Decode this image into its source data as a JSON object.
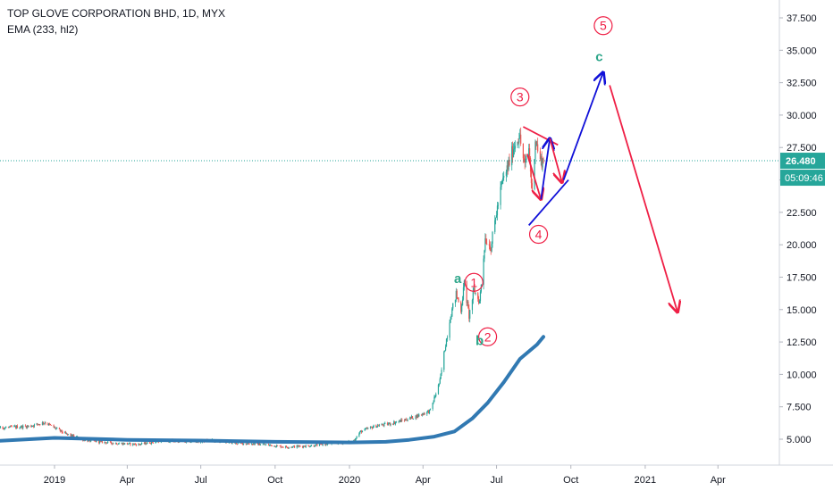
{
  "legend": {
    "symbol": "TOP GLOVE CORPORATION BHD, 1D, MYX",
    "indicator": "EMA (233, hl2)"
  },
  "colors": {
    "up": "#26a69a",
    "down": "#ef5350",
    "ema": "#3179b2",
    "price_line": "#26a69a",
    "wave_red": "#ef1f45",
    "wave_blue": "#1010d8",
    "wave_green": "#2ea68a",
    "axis_text": "#131722",
    "countdown_bg": "#26a69a"
  },
  "chart_data": {
    "type": "candlestick",
    "title": "TOP GLOVE CORPORATION BHD, 1D, MYX",
    "x_ticks": [
      "2019",
      "Apr",
      "Jul",
      "Oct",
      "2020",
      "Apr",
      "Jul",
      "Oct",
      "2021",
      "Apr"
    ],
    "y_ticks": [
      "5.000",
      "7.500",
      "10.000",
      "12.500",
      "15.000",
      "17.500",
      "20.000",
      "22.500",
      "25.000",
      "27.500",
      "30.000",
      "32.500",
      "35.000",
      "37.500"
    ],
    "ylim": [
      3.2,
      38.4
    ],
    "last_price": "26.480",
    "countdown": "05:09:46",
    "grid": false,
    "price_path": [
      [
        "2018-10-01",
        5.8
      ],
      [
        "2018-11-01",
        5.9
      ],
      [
        "2018-12-01",
        6.0
      ],
      [
        "2018-12-20",
        6.3
      ],
      [
        "2019-01-15",
        5.4
      ],
      [
        "2019-02-10",
        4.9
      ],
      [
        "2019-03-15",
        4.7
      ],
      [
        "2019-04-15",
        4.6
      ],
      [
        "2019-05-15",
        4.9
      ],
      [
        "2019-06-15",
        4.8
      ],
      [
        "2019-07-15",
        4.9
      ],
      [
        "2019-08-15",
        4.7
      ],
      [
        "2019-09-15",
        4.6
      ],
      [
        "2019-10-15",
        4.4
      ],
      [
        "2019-11-15",
        4.5
      ],
      [
        "2019-12-15",
        4.7
      ],
      [
        "2020-01-05",
        4.8
      ],
      [
        "2020-01-15",
        5.6
      ],
      [
        "2020-02-01",
        6.0
      ],
      [
        "2020-02-20",
        6.2
      ],
      [
        "2020-03-10",
        6.5
      ],
      [
        "2020-03-25",
        6.8
      ],
      [
        "2020-04-10",
        7.2
      ],
      [
        "2020-04-22",
        9.5
      ],
      [
        "2020-04-28",
        12.0
      ],
      [
        "2020-05-05",
        14.5
      ],
      [
        "2020-05-12",
        16.2
      ],
      [
        "2020-05-18",
        15.0
      ],
      [
        "2020-05-22",
        17.0
      ],
      [
        "2020-05-28",
        14.5
      ],
      [
        "2020-06-03",
        16.5
      ],
      [
        "2020-06-10",
        15.6
      ],
      [
        "2020-06-17",
        20.5
      ],
      [
        "2020-06-24",
        19.8
      ],
      [
        "2020-07-01",
        22.5
      ],
      [
        "2020-07-08",
        24.8
      ],
      [
        "2020-07-15",
        26.0
      ],
      [
        "2020-07-22",
        27.5
      ],
      [
        "2020-07-29",
        28.5
      ],
      [
        "2020-08-05",
        26.0
      ],
      [
        "2020-08-10",
        27.5
      ],
      [
        "2020-08-14",
        24.0
      ],
      [
        "2020-08-18",
        28.2
      ],
      [
        "2020-08-24",
        26.5
      ],
      [
        "2020-08-28",
        26.48
      ]
    ],
    "series": [
      {
        "name": "EMA (233, hl2)",
        "points": [
          [
            "2018-10-01",
            4.8
          ],
          [
            "2019-01-01",
            5.1
          ],
          [
            "2019-04-01",
            4.95
          ],
          [
            "2019-07-01",
            4.9
          ],
          [
            "2019-10-01",
            4.8
          ],
          [
            "2020-01-01",
            4.75
          ],
          [
            "2020-02-15",
            4.8
          ],
          [
            "2020-03-15",
            4.95
          ],
          [
            "2020-04-15",
            5.2
          ],
          [
            "2020-05-10",
            5.6
          ],
          [
            "2020-06-01",
            6.6
          ],
          [
            "2020-06-20",
            7.8
          ],
          [
            "2020-07-10",
            9.4
          ],
          [
            "2020-07-30",
            11.2
          ],
          [
            "2020-08-20",
            12.3
          ],
          [
            "2020-08-28",
            12.9
          ]
        ]
      }
    ],
    "annotations": {
      "lines": [
        {
          "color": "red",
          "points": [
            [
              "2020-08-03",
              29.1
            ],
            [
              "2020-09-15",
              27.7
            ]
          ]
        },
        {
          "color": "blue",
          "points": [
            [
              "2020-08-10",
              21.5
            ],
            [
              "2020-09-28",
              25.0
            ]
          ]
        },
        {
          "color": "red",
          "points": [
            [
              "2020-08-08",
              27.0
            ],
            [
              "2020-08-25",
              23.5
            ]
          ],
          "arrow": true
        },
        {
          "color": "blue",
          "points": [
            [
              "2020-08-25",
              23.5
            ],
            [
              "2020-09-05",
              28.2
            ]
          ],
          "arrow": true
        },
        {
          "color": "red",
          "points": [
            [
              "2020-09-05",
              28.2
            ],
            [
              "2020-09-20",
              24.8
            ]
          ],
          "arrow": true
        },
        {
          "color": "blue",
          "points": [
            [
              "2020-09-22",
              25.0
            ],
            [
              "2020-11-10",
              33.3
            ]
          ],
          "arrow": true
        },
        {
          "color": "red",
          "points": [
            [
              "2020-11-18",
              32.3
            ],
            [
              "2021-02-10",
              14.8
            ]
          ],
          "arrow": true
        }
      ],
      "labels": [
        {
          "text": "1",
          "circle": true,
          "color": "red",
          "at": [
            "2020-06-03",
            17.1
          ]
        },
        {
          "text": "2",
          "circle": true,
          "color": "red",
          "at": [
            "2020-06-20",
            12.9
          ]
        },
        {
          "text": "3",
          "circle": true,
          "color": "red",
          "at": [
            "2020-07-30",
            31.4
          ]
        },
        {
          "text": "4",
          "circle": true,
          "color": "red",
          "at": [
            "2020-08-22",
            20.8
          ]
        },
        {
          "text": "5",
          "circle": true,
          "color": "red",
          "at": [
            "2020-11-10",
            36.9
          ]
        },
        {
          "text": "a",
          "circle": false,
          "color": "green",
          "at": [
            "2020-05-14",
            17.4
          ]
        },
        {
          "text": "b",
          "circle": false,
          "color": "green",
          "at": [
            "2020-06-10",
            12.6
          ]
        },
        {
          "text": "c",
          "circle": false,
          "color": "green",
          "at": [
            "2020-11-05",
            34.5
          ]
        }
      ]
    }
  }
}
